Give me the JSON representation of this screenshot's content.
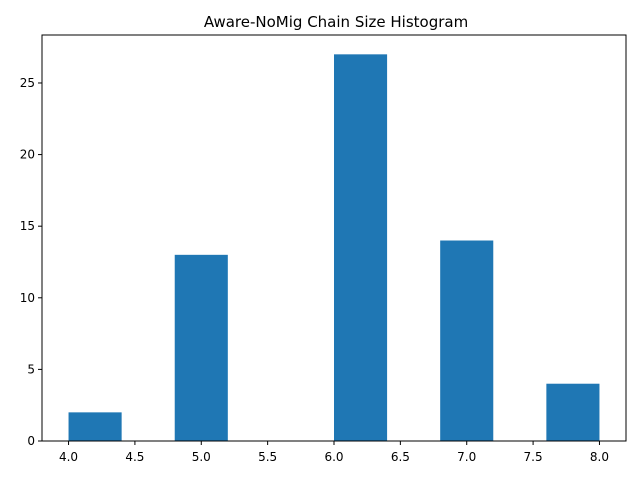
{
  "chart_data": {
    "type": "bar",
    "title": "Aware-NoMig Chain Size Histogram",
    "xlabel": "",
    "ylabel": "",
    "bins": [
      {
        "x_start": 4.0,
        "x_end": 4.4,
        "count": 2
      },
      {
        "x_start": 4.4,
        "x_end": 4.8,
        "count": 0
      },
      {
        "x_start": 4.8,
        "x_end": 5.2,
        "count": 13
      },
      {
        "x_start": 5.2,
        "x_end": 5.6,
        "count": 0
      },
      {
        "x_start": 5.6,
        "x_end": 6.0,
        "count": 0
      },
      {
        "x_start": 6.0,
        "x_end": 6.4,
        "count": 27
      },
      {
        "x_start": 6.4,
        "x_end": 6.8,
        "count": 0
      },
      {
        "x_start": 6.8,
        "x_end": 7.2,
        "count": 14
      },
      {
        "x_start": 7.2,
        "x_end": 7.6,
        "count": 0
      },
      {
        "x_start": 7.6,
        "x_end": 8.0,
        "count": 4
      }
    ],
    "xlim": [
      3.8,
      8.2
    ],
    "ylim": [
      0,
      28.35
    ],
    "x_ticks": [
      "4.0",
      "4.5",
      "5.0",
      "5.5",
      "6.0",
      "6.5",
      "7.0",
      "7.5",
      "8.0"
    ],
    "y_ticks": [
      "0",
      "5",
      "10",
      "15",
      "20",
      "25"
    ],
    "bar_color": "#1f77b4",
    "grid": false,
    "legend": "none"
  }
}
